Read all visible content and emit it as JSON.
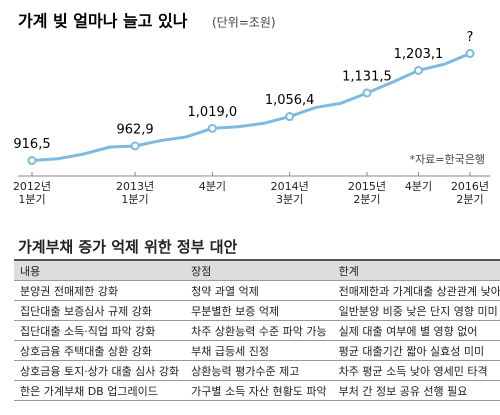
{
  "chart_data": {
    "type": "line",
    "title": "가계 빚 얼마나 늘고 있나",
    "subtitle": "(단위=조원)",
    "note": "*자료=한국은행",
    "categories": [
      "2012년\n1분기",
      null,
      null,
      null,
      "2013년\n1분기",
      null,
      null,
      "4분기",
      null,
      null,
      "2014년\n3분기",
      null,
      null,
      "2015년\n2분기",
      null,
      "4분기",
      null,
      "2016년\n2분기"
    ],
    "series": [
      {
        "name": null,
        "color": "#7db9e0",
        "values": [
          916.5,
          922,
          937,
          959,
          962.9,
          980,
          992,
          1019.0,
          1024,
          1035,
          1056.4,
          1085,
          1099,
          1131.5,
          1166,
          1203.1,
          1223,
          1257
        ],
        "value_labels": [
          "916,5",
          null,
          null,
          null,
          "962,9",
          null,
          null,
          "1,019,0",
          null,
          null,
          "1,056,4",
          null,
          null,
          "1,131,5",
          null,
          "1,203,1",
          null,
          "?"
        ]
      }
    ],
    "ylim": [
      880,
      1300
    ]
  },
  "table": {
    "title": "가계부채 증가 억제 위한 정부 대안",
    "header": [
      "내용",
      "장점",
      "한계"
    ],
    "rows": [
      [
        "분양권 전매제한 강화",
        "청약 과열 억제",
        "전매제한과 가계대출 상관관계 낮아"
      ],
      [
        "집단대출 보증심사 규제 강화",
        "무분별한 보증 억제",
        "일반분양 비중 낮은 단지 영향 미미"
      ],
      [
        "집단대출 소득·직업 파악 강화",
        "차주 상환능력 수준 파악 가능",
        "실제 대출 여부에 별 영향 없어"
      ],
      [
        "상호금융 주택대출 상환 강화",
        "부채 급등세 진정",
        "평균 대출기간 짧아 실효성 미미"
      ],
      [
        "상호금융 토지·상가 대출 심사 강화",
        "상환능력 평가수준 제고",
        "차주 평균 소득 낮아 영세민 타격"
      ],
      [
        "한은 가계부채 DB 업그레이드",
        "가구별 소득 자산 현황도 파악",
        "부처 간 정보 공유 선행 필요"
      ]
    ]
  }
}
